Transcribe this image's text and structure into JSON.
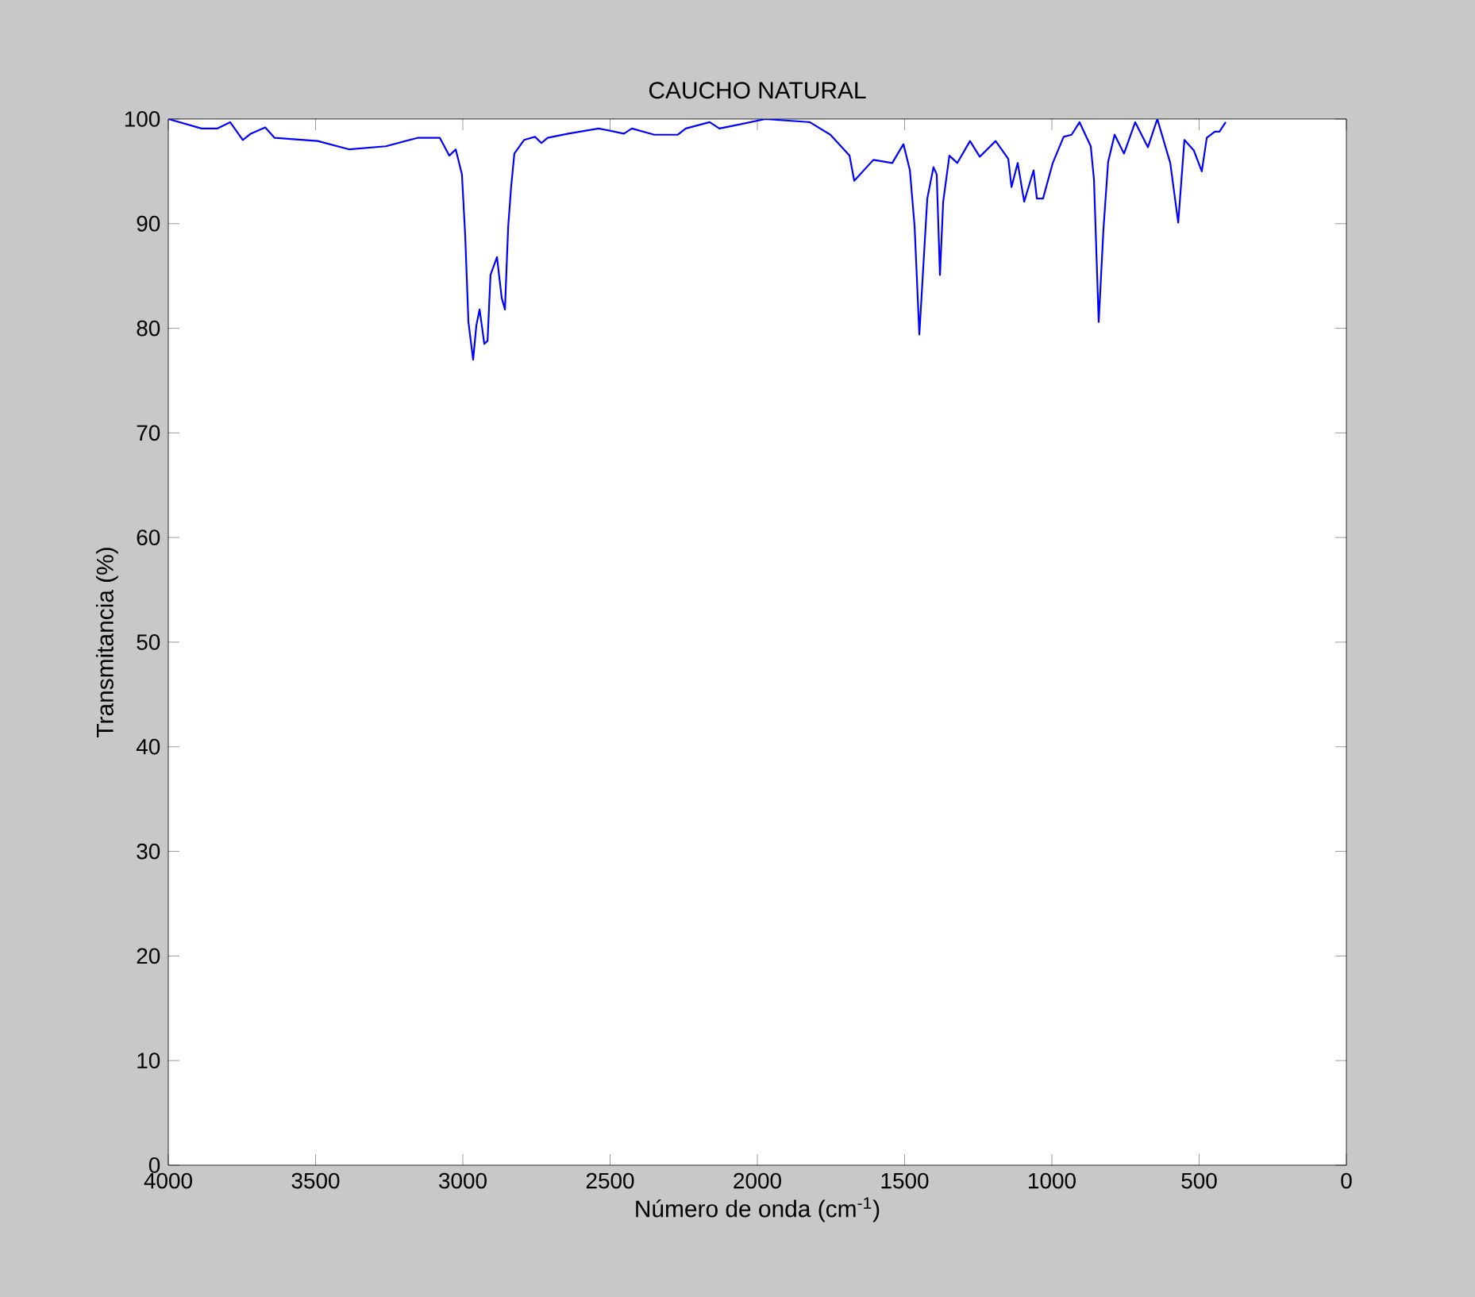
{
  "chart_data": {
    "type": "line",
    "title": "CAUCHO NATURAL",
    "xlabel": "Número de onda (cm$^{-1}$)",
    "ylabel": "Transmitancia (%)",
    "xlim": [
      4000,
      0
    ],
    "ylim": [
      0,
      100
    ],
    "xticks": [
      4000,
      3500,
      3000,
      2500,
      2000,
      1500,
      1000,
      500,
      0
    ],
    "yticks": [
      0,
      10,
      20,
      30,
      40,
      50,
      60,
      70,
      80,
      90,
      100
    ],
    "grid": false,
    "marker": "none",
    "line_style": "solid",
    "series": [
      {
        "color": "#0000ff",
        "x": [
          4000,
          3887,
          3833,
          3790,
          3747,
          3720,
          3671,
          3639,
          3493,
          3385,
          3261,
          3154,
          3078,
          3046,
          3024,
          3003,
          2992,
          2981,
          2965,
          2954,
          2943,
          2927,
          2916,
          2906,
          2884,
          2868,
          2857,
          2846,
          2836,
          2825,
          2792,
          2755,
          2733,
          2712,
          2642,
          2539,
          2453,
          2426,
          2350,
          2270,
          2243,
          2162,
          2129,
          2075,
          1973,
          1822,
          1752,
          1687,
          1671,
          1606,
          1542,
          1504,
          1482,
          1466,
          1450,
          1434,
          1423,
          1402,
          1391,
          1380,
          1369,
          1348,
          1321,
          1278,
          1245,
          1191,
          1148,
          1137,
          1116,
          1094,
          1062,
          1051,
          1030,
          997,
          960,
          933,
          906,
          868,
          857,
          841,
          825,
          809,
          787,
          755,
          717,
          674,
          642,
          598,
          571,
          550,
          518,
          491,
          474,
          447,
          431,
          410
        ],
        "values": [
          100,
          99.1,
          99.1,
          99.7,
          98.0,
          98.6,
          99.2,
          98.2,
          97.9,
          97.1,
          97.4,
          98.2,
          98.2,
          96.5,
          97.1,
          94.7,
          88.9,
          80.6,
          77.0,
          80.3,
          81.8,
          78.5,
          78.8,
          85.1,
          86.8,
          82.9,
          81.8,
          89.7,
          93.5,
          96.7,
          98.0,
          98.3,
          97.7,
          98.2,
          98.6,
          99.1,
          98.6,
          99.1,
          98.5,
          98.5,
          99.1,
          99.7,
          99.1,
          99.4,
          100,
          99.7,
          98.5,
          96.5,
          94.1,
          96.1,
          95.8,
          97.6,
          95.1,
          89.7,
          79.4,
          87.1,
          92.4,
          95.4,
          94.7,
          85.1,
          92.1,
          96.5,
          95.8,
          97.9,
          96.4,
          97.9,
          96.2,
          93.5,
          95.8,
          92.1,
          95.1,
          92.4,
          92.4,
          95.8,
          98.3,
          98.5,
          99.7,
          97.4,
          94.2,
          80.6,
          89.4,
          95.9,
          98.5,
          96.7,
          99.7,
          97.3,
          100,
          95.8,
          90.1,
          98.0,
          97.0,
          95.0,
          98.2,
          98.8,
          98.8,
          99.7
        ]
      }
    ]
  }
}
